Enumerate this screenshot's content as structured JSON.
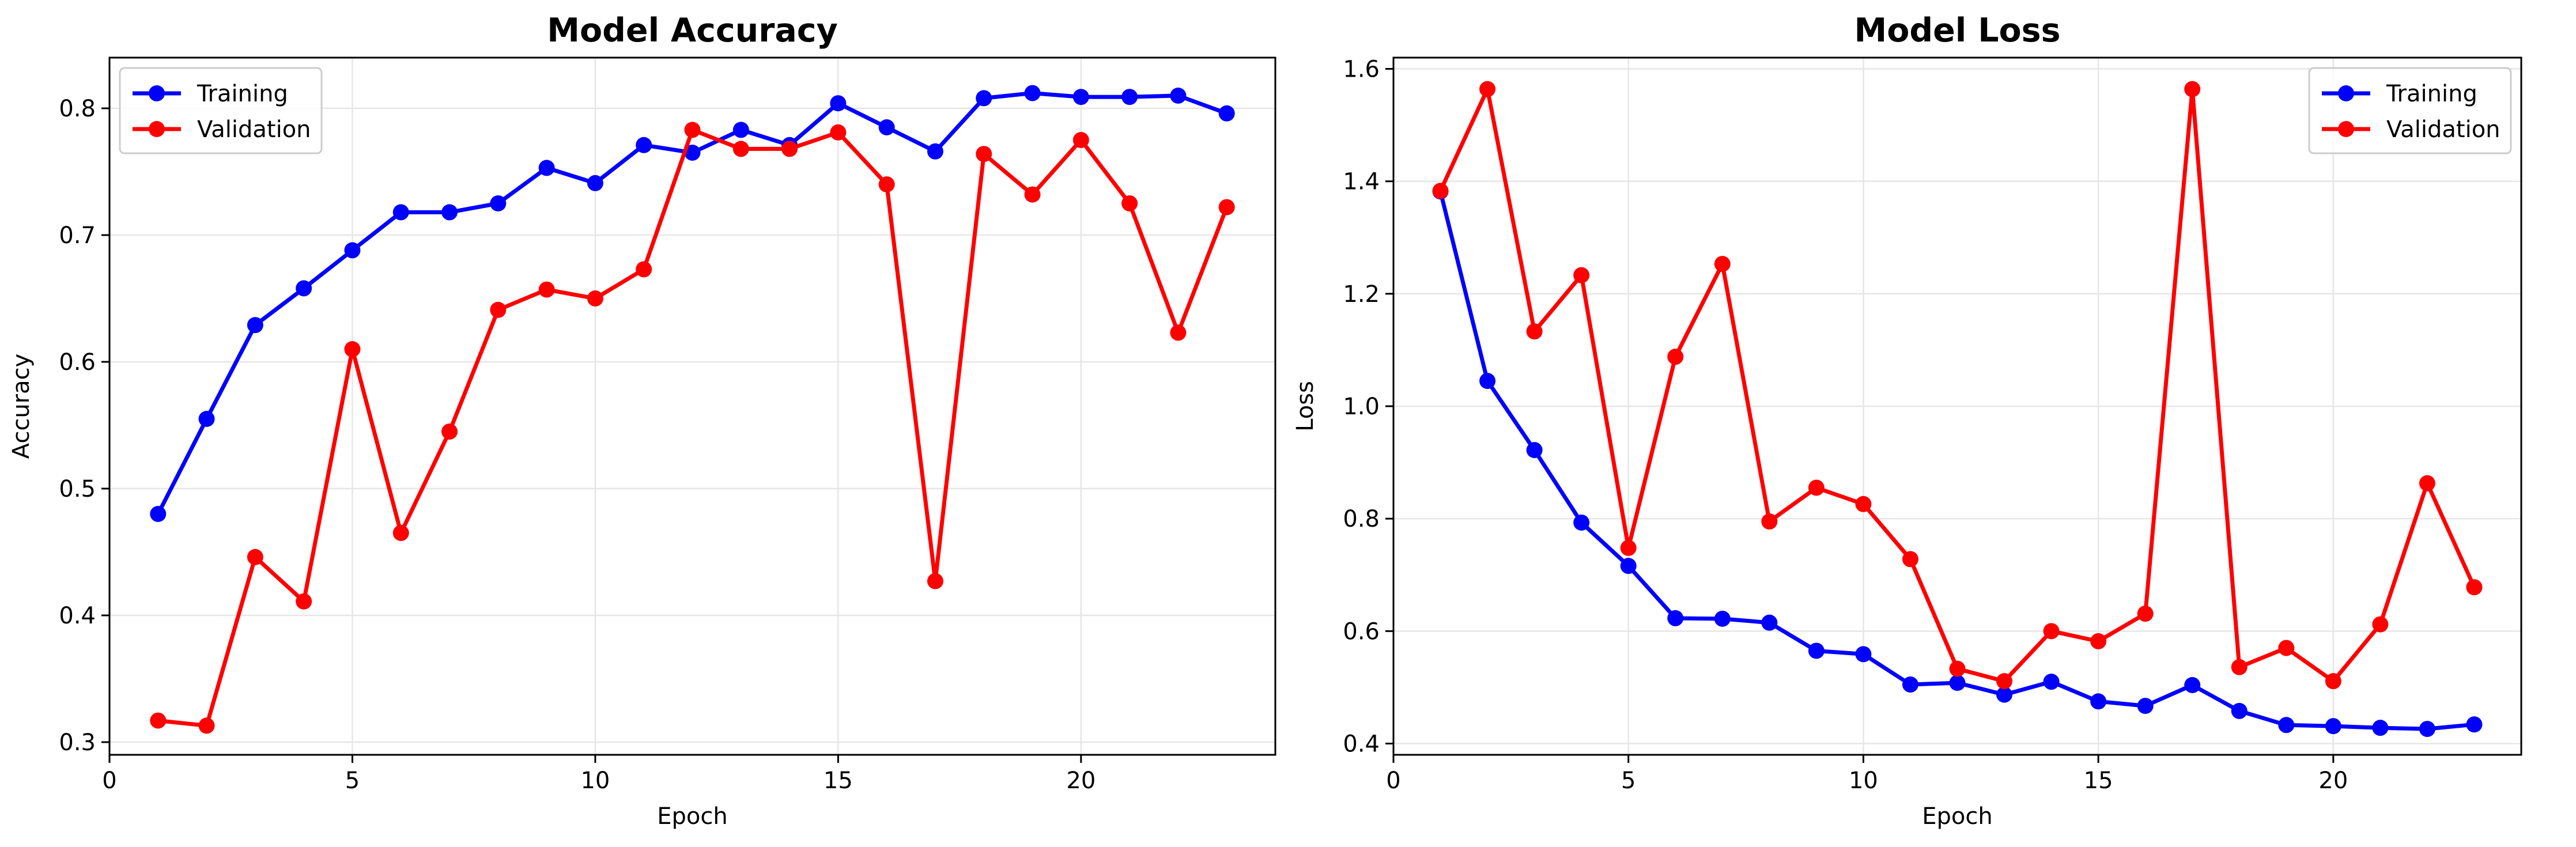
{
  "chart_data": [
    {
      "type": "line",
      "title": "Model Accuracy",
      "xlabel": "Epoch",
      "ylabel": "Accuracy",
      "xlim": [
        0,
        24
      ],
      "ylim": [
        0.29,
        0.84
      ],
      "xticks": [
        0,
        5,
        10,
        15,
        20
      ],
      "yticks": [
        0.3,
        0.4,
        0.5,
        0.6,
        0.7,
        0.8
      ],
      "grid": true,
      "legend_position": "upper left",
      "x": [
        1,
        2,
        3,
        4,
        5,
        6,
        7,
        8,
        9,
        10,
        11,
        12,
        13,
        14,
        15,
        16,
        17,
        18,
        19,
        20,
        21,
        22,
        23
      ],
      "series": [
        {
          "name": "Training",
          "color": "#0000ff",
          "marker": "circle",
          "values": [
            0.48,
            0.555,
            0.629,
            0.658,
            0.688,
            0.718,
            0.718,
            0.725,
            0.753,
            0.741,
            0.771,
            0.765,
            0.783,
            0.771,
            0.804,
            0.785,
            0.766,
            0.808,
            0.812,
            0.809,
            0.809,
            0.81,
            0.796
          ]
        },
        {
          "name": "Validation",
          "color": "#ff0000",
          "marker": "circle",
          "values": [
            0.317,
            0.313,
            0.446,
            0.411,
            0.61,
            0.465,
            0.545,
            0.641,
            0.657,
            0.65,
            0.673,
            0.783,
            0.768,
            0.768,
            0.781,
            0.74,
            0.427,
            0.764,
            0.732,
            0.775,
            0.725,
            0.623,
            0.722
          ]
        }
      ]
    },
    {
      "type": "line",
      "title": "Model Loss",
      "xlabel": "Epoch",
      "ylabel": "Loss",
      "xlim": [
        0,
        24
      ],
      "ylim": [
        0.38,
        1.62
      ],
      "xticks": [
        0,
        5,
        10,
        15,
        20
      ],
      "yticks": [
        0.4,
        0.6,
        0.8,
        1.0,
        1.2,
        1.4,
        1.6
      ],
      "grid": true,
      "legend_position": "upper right",
      "x": [
        1,
        2,
        3,
        4,
        5,
        6,
        7,
        8,
        9,
        10,
        11,
        12,
        13,
        14,
        15,
        16,
        17,
        18,
        19,
        20,
        21,
        22,
        23
      ],
      "series": [
        {
          "name": "Training",
          "color": "#0000ff",
          "marker": "circle",
          "values": [
            1.382,
            1.045,
            0.922,
            0.793,
            0.716,
            0.623,
            0.622,
            0.615,
            0.565,
            0.559,
            0.505,
            0.508,
            0.487,
            0.51,
            0.475,
            0.467,
            0.504,
            0.458,
            0.433,
            0.431,
            0.428,
            0.426,
            0.434
          ]
        },
        {
          "name": "Validation",
          "color": "#ff0000",
          "marker": "circle",
          "values": [
            1.383,
            1.564,
            1.133,
            1.233,
            0.748,
            1.088,
            1.253,
            0.795,
            0.855,
            0.826,
            0.728,
            0.533,
            0.511,
            0.6,
            0.582,
            0.631,
            1.564,
            0.536,
            0.57,
            0.511,
            0.612,
            0.863,
            0.678
          ]
        }
      ]
    }
  ]
}
